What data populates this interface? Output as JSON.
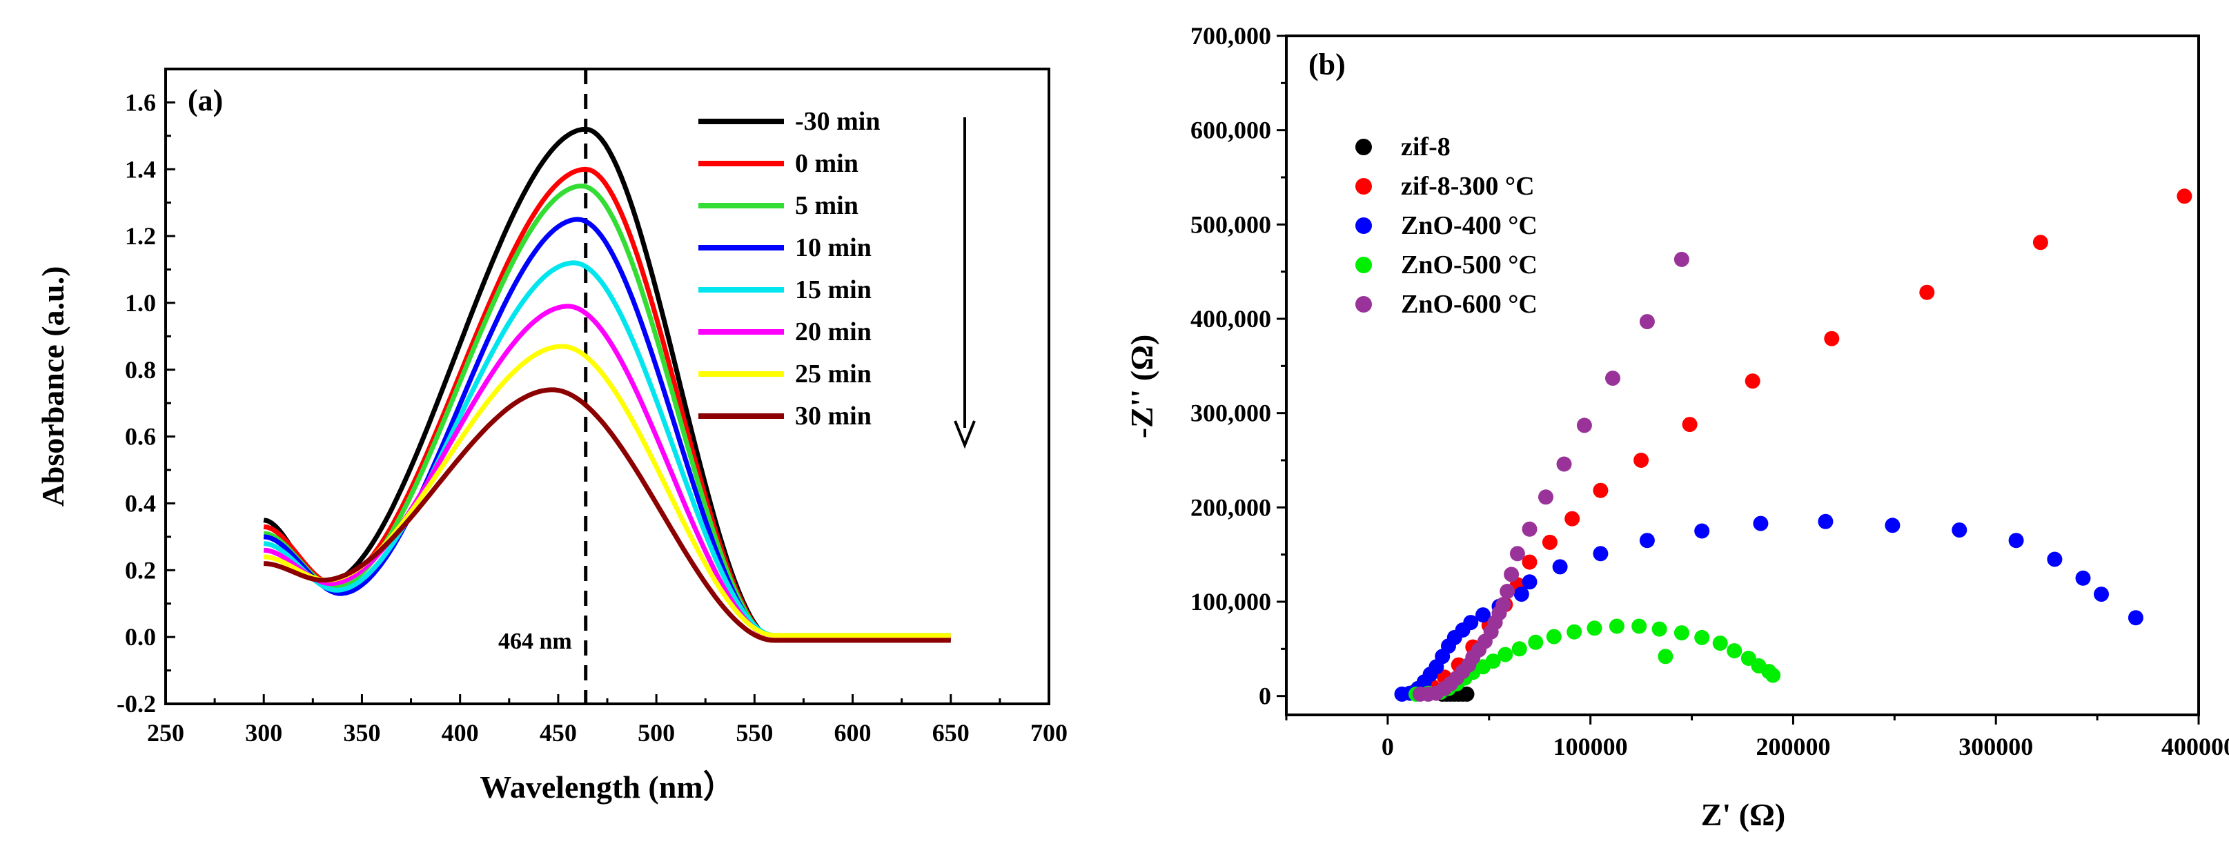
{
  "chart_data": [
    {
      "type": "line",
      "panel_label": "(a)",
      "xlabel": "Wavelength (nm）",
      "ylabel": "Absorbance (a.u.)",
      "xlim": [
        250,
        700
      ],
      "ylim": [
        -0.2,
        1.7
      ],
      "xticks": [
        250,
        300,
        350,
        400,
        450,
        500,
        550,
        600,
        650,
        700
      ],
      "yticks": [
        -0.2,
        0.0,
        0.2,
        0.4,
        0.6,
        0.8,
        1.0,
        1.2,
        1.4,
        1.6
      ],
      "tick_labels_x": [
        "250",
        "300",
        "350",
        "400",
        "450",
        "500",
        "550",
        "600",
        "650",
        "700"
      ],
      "tick_labels_y": [
        "-0.2",
        "0.0",
        "0.2",
        "0.4",
        "0.6",
        "0.8",
        "1.0",
        "1.2",
        "1.4",
        "1.6"
      ],
      "annotation": {
        "label": "464 nm",
        "x": 464,
        "style": "dashed vertical line"
      },
      "trend_arrow": "downward arrow next to legend",
      "legend_position": "top-right",
      "series": [
        {
          "name": "-30 min",
          "color": "#000000",
          "start": 0.35,
          "dip_x": 331,
          "dip_y": 0.16,
          "peak_x": 464,
          "peak": 1.52,
          "end_x": 560,
          "tail": -0.005
        },
        {
          "name": "0 min",
          "color": "#ff0000",
          "start": 0.33,
          "dip_x": 335,
          "dip_y": 0.16,
          "peak_x": 464,
          "peak": 1.4,
          "end_x": 560,
          "tail": -0.005
        },
        {
          "name": "5 min",
          "color": "#33dd33",
          "start": 0.31,
          "dip_x": 336,
          "dip_y": 0.15,
          "peak_x": 462,
          "peak": 1.35,
          "end_x": 560,
          "tail": -0.005
        },
        {
          "name": "10 min",
          "color": "#0000ff",
          "start": 0.3,
          "dip_x": 339,
          "dip_y": 0.13,
          "peak_x": 460,
          "peak": 1.25,
          "end_x": 560,
          "tail": -0.005
        },
        {
          "name": "15 min",
          "color": "#00e5ee",
          "start": 0.28,
          "dip_x": 337,
          "dip_y": 0.14,
          "peak_x": 458,
          "peak": 1.12,
          "end_x": 560,
          "tail": 0.005
        },
        {
          "name": "20 min",
          "color": "#ff00ff",
          "start": 0.26,
          "dip_x": 334,
          "dip_y": 0.16,
          "peak_x": 455,
          "peak": 0.99,
          "end_x": 560,
          "tail": 0.0
        },
        {
          "name": "25 min",
          "color": "#ffff00",
          "start": 0.24,
          "dip_x": 332,
          "dip_y": 0.17,
          "peak_x": 452,
          "peak": 0.87,
          "end_x": 560,
          "tail": 0.005
        },
        {
          "name": "30 min",
          "color": "#8b0000",
          "start": 0.22,
          "dip_x": 330,
          "dip_y": 0.17,
          "peak_x": 447,
          "peak": 0.74,
          "end_x": 560,
          "tail": -0.01
        }
      ]
    },
    {
      "type": "scatter",
      "panel_label": "(b)",
      "xlabel": "Z' (Ω)",
      "ylabel": "-Z'' (Ω)",
      "xlim": [
        -50000,
        400000
      ],
      "ylim": [
        -20000,
        700000
      ],
      "xticks": [
        0,
        100000,
        200000,
        300000,
        400000
      ],
      "yticks": [
        0,
        100000,
        200000,
        300000,
        400000,
        500000,
        600000,
        700000
      ],
      "tick_labels_x": [
        "0",
        "100000",
        "200000",
        "300000",
        "400000"
      ],
      "tick_labels_y": [
        "0",
        "100,000",
        "200,000",
        "300,000",
        "400,000",
        "500,000",
        "600,000",
        "700,000"
      ],
      "legend_position": "top-left",
      "series": [
        {
          "name": "zif-8",
          "color": "#000000",
          "points": [
            [
              27000,
              2000
            ],
            [
              29000,
              2000
            ],
            [
              31000,
              2000
            ],
            [
              33000,
              2000
            ],
            [
              35000,
              2000
            ],
            [
              37000,
              2000
            ],
            [
              39000,
              2000
            ]
          ]
        },
        {
          "name": "zif-8-300 °C",
          "color": "#ff0000",
          "points": [
            [
              13000,
              4000
            ],
            [
              17000,
              6000
            ],
            [
              22000,
              10000
            ],
            [
              28000,
              20000
            ],
            [
              35000,
              33000
            ],
            [
              42000,
              52000
            ],
            [
              50000,
              75000
            ],
            [
              58000,
              97000
            ],
            [
              64000,
              118000
            ],
            [
              70000,
              142000
            ],
            [
              80000,
              163000
            ],
            [
              91000,
              188000
            ],
            [
              105000,
              218000
            ],
            [
              125000,
              250000
            ],
            [
              149000,
              288000
            ],
            [
              180000,
              334000
            ],
            [
              219000,
              379000
            ],
            [
              266000,
              428000
            ],
            [
              322000,
              481000
            ],
            [
              393000,
              530000
            ]
          ]
        },
        {
          "name": "ZnO-400 °C",
          "color": "#0000ff",
          "points": [
            [
              7000,
              2000
            ],
            [
              11000,
              3000
            ],
            [
              15000,
              8000
            ],
            [
              18000,
              15000
            ],
            [
              21000,
              23000
            ],
            [
              24000,
              31000
            ],
            [
              27000,
              42000
            ],
            [
              30000,
              53000
            ],
            [
              33000,
              62000
            ],
            [
              37000,
              70000
            ],
            [
              41000,
              78000
            ],
            [
              47000,
              86000
            ],
            [
              55000,
              95000
            ],
            [
              66000,
              108000
            ],
            [
              70000,
              121000
            ],
            [
              85000,
              137000
            ],
            [
              105000,
              151000
            ],
            [
              128000,
              165000
            ],
            [
              155000,
              175000
            ],
            [
              184000,
              183000
            ],
            [
              216000,
              185000
            ],
            [
              249000,
              181000
            ],
            [
              282000,
              176000
            ],
            [
              310000,
              165000
            ],
            [
              329000,
              145000
            ],
            [
              343000,
              125000
            ],
            [
              352000,
              108000
            ],
            [
              369000,
              83000
            ]
          ]
        },
        {
          "name": "ZnO-500 °C",
          "color": "#00ee00",
          "points": [
            [
              14000,
              2000
            ],
            [
              20000,
              3000
            ],
            [
              26000,
              4000
            ],
            [
              30000,
              8000
            ],
            [
              34000,
              13000
            ],
            [
              38000,
              19000
            ],
            [
              42000,
              25000
            ],
            [
              47000,
              31000
            ],
            [
              52000,
              37000
            ],
            [
              58000,
              44000
            ],
            [
              65000,
              50000
            ],
            [
              73000,
              57000
            ],
            [
              82000,
              63000
            ],
            [
              92000,
              68000
            ],
            [
              102000,
              72000
            ],
            [
              113000,
              74000
            ],
            [
              124000,
              74000
            ],
            [
              134000,
              71000
            ],
            [
              137000,
              42000
            ],
            [
              145000,
              67000
            ],
            [
              155000,
              62000
            ],
            [
              164000,
              56000
            ],
            [
              171000,
              48000
            ],
            [
              178000,
              40000
            ],
            [
              183000,
              32000
            ],
            [
              188000,
              26000
            ],
            [
              190000,
              22000
            ]
          ]
        },
        {
          "name": "ZnO-600 °C",
          "color": "#993399",
          "points": [
            [
              16000,
              2000
            ],
            [
              20000,
              2000
            ],
            [
              24000,
              3000
            ],
            [
              28000,
              8000
            ],
            [
              31000,
              13000
            ],
            [
              34000,
              19000
            ],
            [
              37000,
              26000
            ],
            [
              40000,
              33000
            ],
            [
              42000,
              41000
            ],
            [
              45000,
              49000
            ],
            [
              48000,
              58000
            ],
            [
              51000,
              68000
            ],
            [
              53000,
              78000
            ],
            [
              55000,
              88000
            ],
            [
              57000,
              97000
            ],
            [
              59000,
              111000
            ],
            [
              61000,
              129000
            ],
            [
              64000,
              151000
            ],
            [
              70000,
              177000
            ],
            [
              78000,
              211000
            ],
            [
              87000,
              246000
            ],
            [
              97000,
              287000
            ],
            [
              111000,
              337000
            ],
            [
              128000,
              397000
            ],
            [
              145000,
              463000
            ]
          ]
        }
      ]
    }
  ]
}
